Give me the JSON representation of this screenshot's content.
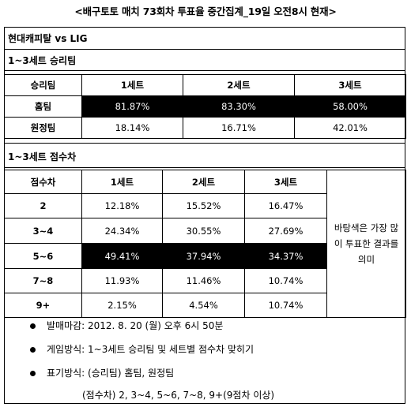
{
  "title": "<배구토토 매치 73회차 투표율 중간집계_19일 오전8시 현재>",
  "match": "현대캐피탈 vs LIG",
  "winner_section": {
    "heading": "1~3세트 승리팀",
    "corner": "승리팀",
    "sets": [
      "1세트",
      "2세트",
      "3세트"
    ],
    "rows": [
      {
        "label": "홈팀",
        "values": [
          "81.87%",
          "83.30%",
          "58.00%"
        ],
        "highlight": true
      },
      {
        "label": "원정팀",
        "values": [
          "18.14%",
          "16.71%",
          "42.01%"
        ],
        "highlight": false
      }
    ]
  },
  "margin_section": {
    "heading": "1~3세트 점수차",
    "corner": "점수차",
    "sets": [
      "1세트",
      "2세트",
      "3세트"
    ],
    "rows": [
      {
        "label": "2",
        "values": [
          "12.18%",
          "15.52%",
          "16.47%"
        ],
        "highlight": false
      },
      {
        "label": "3~4",
        "values": [
          "24.34%",
          "30.55%",
          "27.69%"
        ],
        "highlight": false
      },
      {
        "label": "5~6",
        "values": [
          "49.41%",
          "37.94%",
          "34.37%"
        ],
        "highlight": true
      },
      {
        "label": "7~8",
        "values": [
          "11.93%",
          "11.46%",
          "10.74%"
        ],
        "highlight": false
      },
      {
        "label": "9+",
        "values": [
          "2.15%",
          "4.54%",
          "10.74%"
        ],
        "highlight": false
      }
    ],
    "note": "바탕색은 가장 많이 투표한 결과를 의미"
  },
  "bullets": [
    "발매마감: 2012. 8. 20 (월) 오후 6시 50분",
    "게임방식: 1~3세트 승리팀 및 세트별 점수차 맞히기",
    "표기방식: (승리팀) 홈팀, 원정팀"
  ],
  "bullet_sub": "(점수차) 2, 3~4, 5~6, 7~8, 9+(9점차 이상)",
  "highlight_color": "#000000"
}
